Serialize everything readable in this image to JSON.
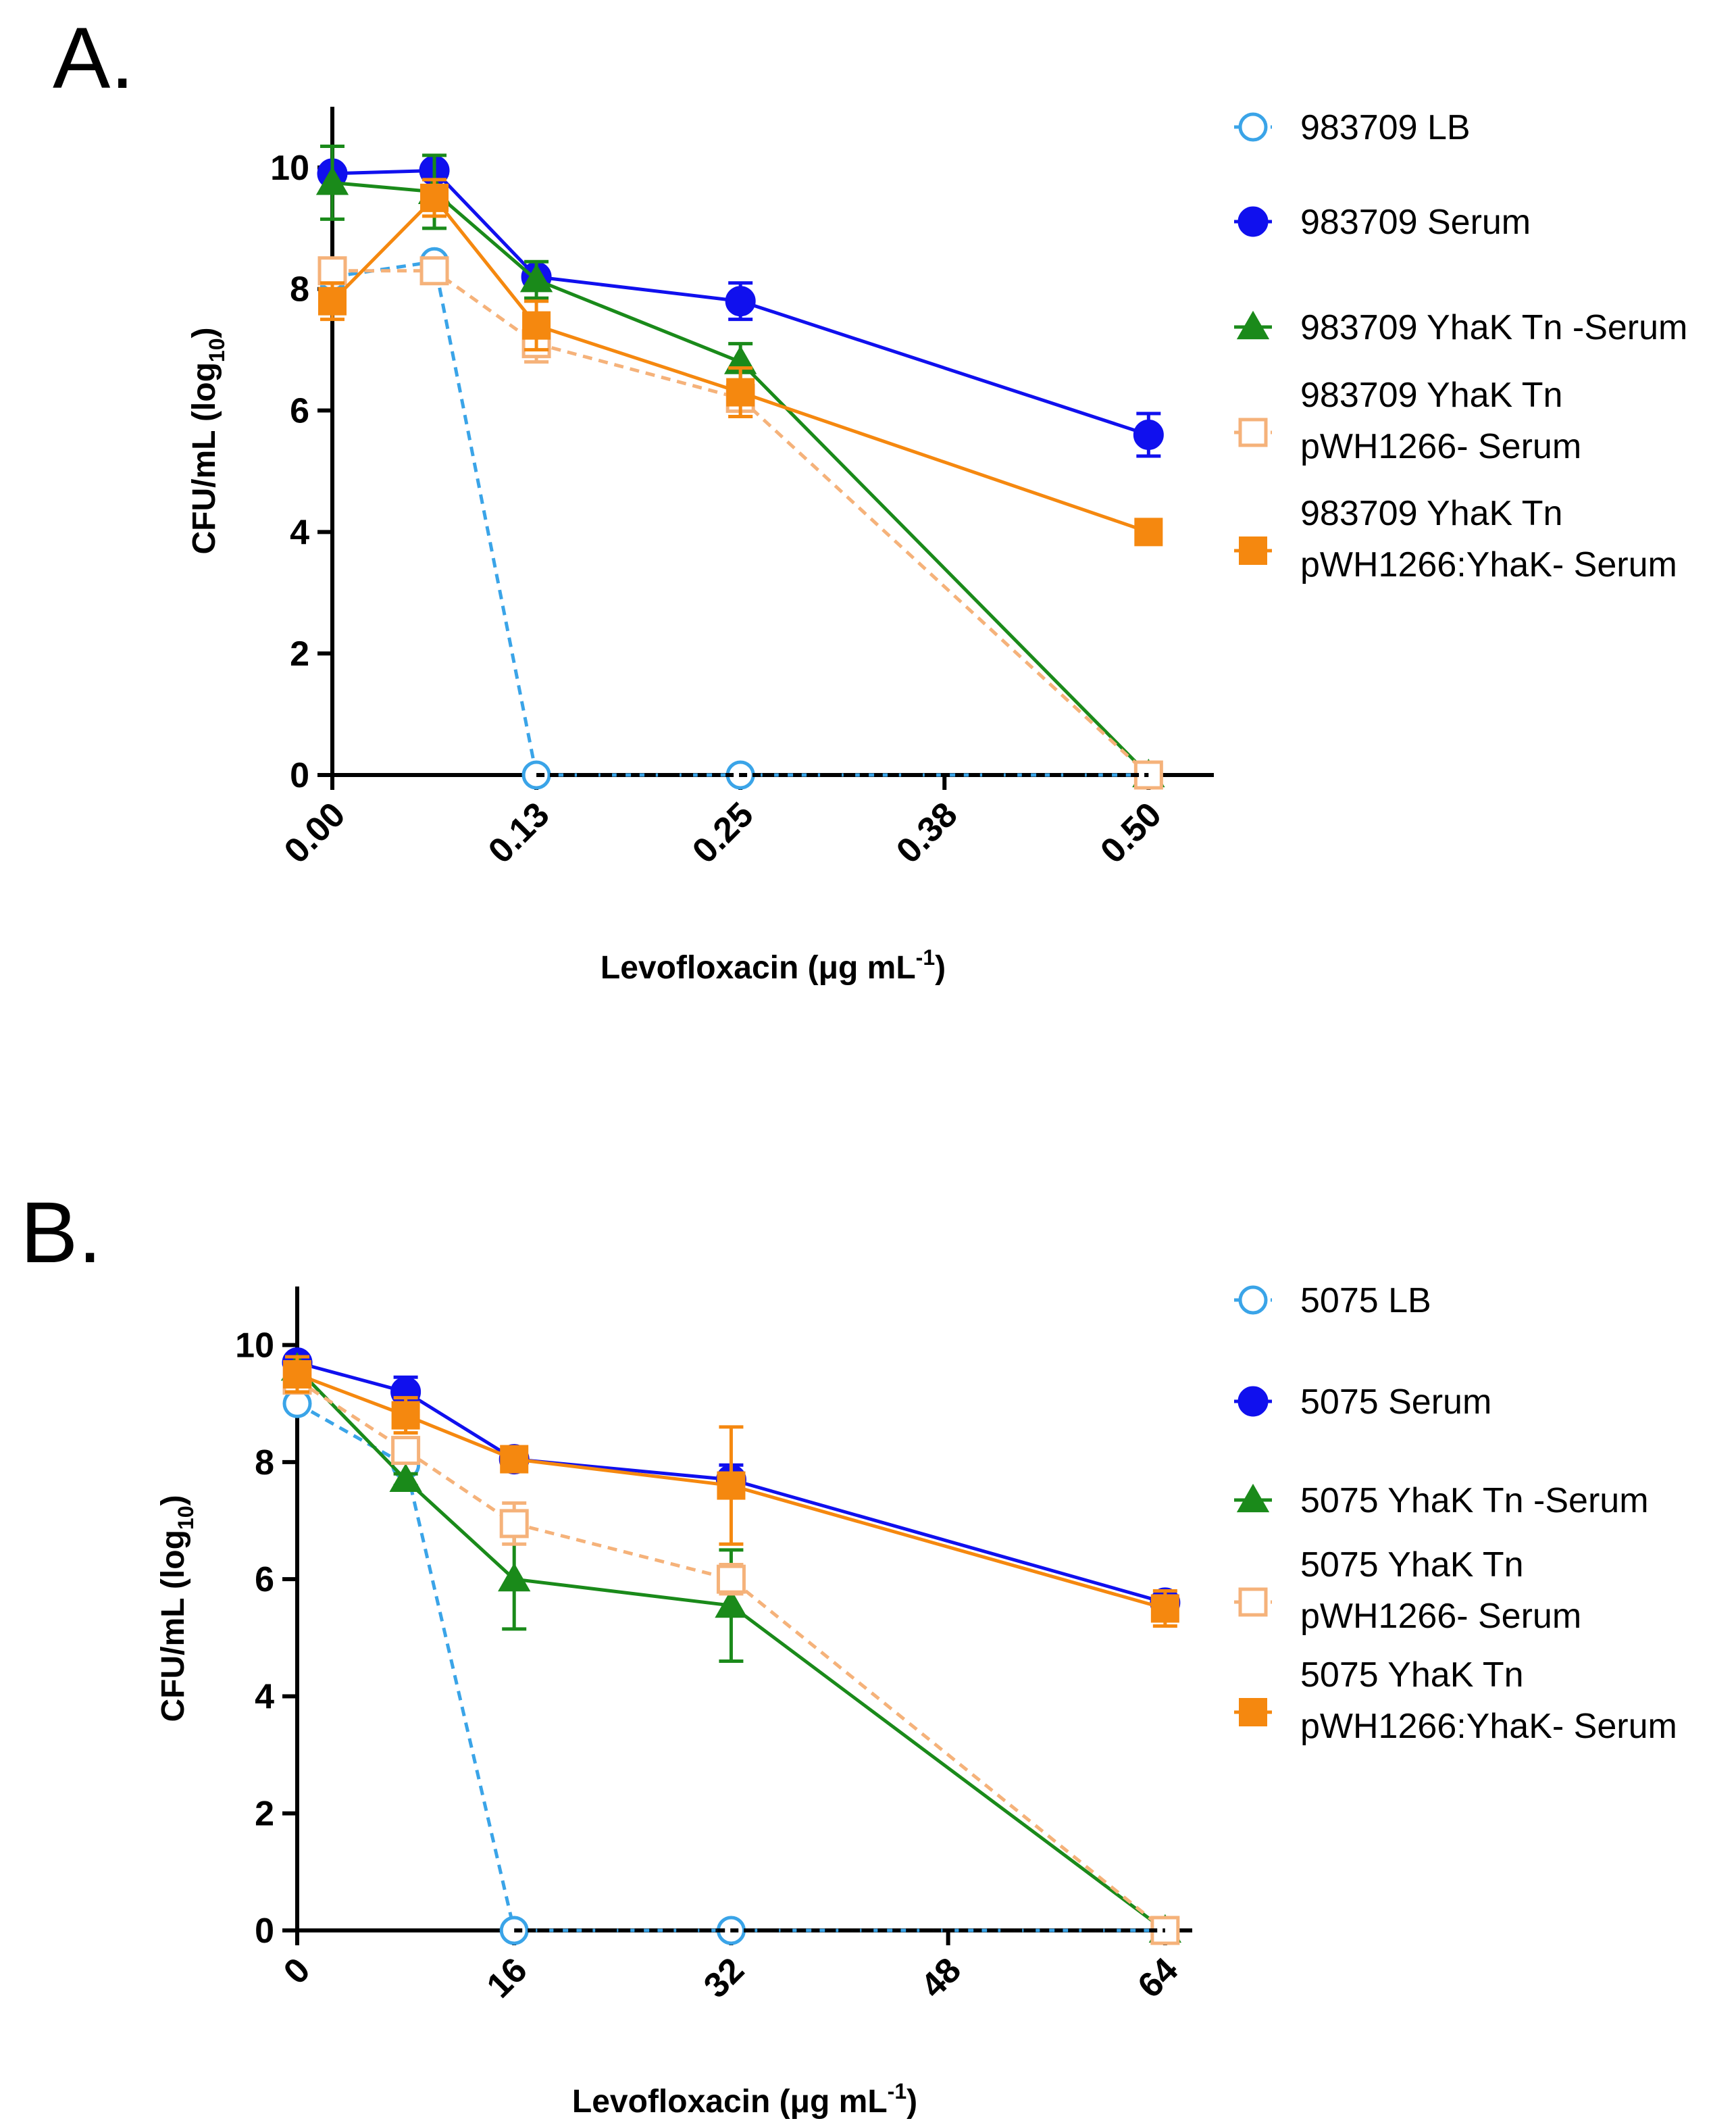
{
  "chart_data": [
    {
      "type": "line",
      "panel_label": "A.",
      "xlabel": "Levofloxacin",
      "xlabel_unit": "(μg mL",
      "xlabel_sup": "-1",
      "xlabel_close": ")",
      "ylabel": "CFU/mL (log",
      "ylabel_sub": "10",
      "ylabel_close": ")",
      "xlim": [
        0,
        0.54
      ],
      "ylim": [
        0,
        11
      ],
      "xticks": [
        0,
        0.125,
        0.25,
        0.375,
        0.5
      ],
      "xtick_labels": [
        "0.00",
        "0.13",
        "0.25",
        "0.38",
        "0.50"
      ],
      "yticks": [
        0,
        2,
        4,
        6,
        8,
        10
      ],
      "ytick_labels": [
        "0",
        "2",
        "4",
        "6",
        "8",
        "10"
      ],
      "x": [
        0,
        0.0625,
        0.125,
        0.25,
        0.5
      ],
      "legend_position": "right",
      "series": [
        {
          "name": "983709 LB",
          "legend_lines": [
            "983709 LB"
          ],
          "color": "#3aa4e8",
          "marker": "circle-open",
          "dashed": true,
          "values": [
            8.2,
            8.45,
            0,
            0,
            0
          ],
          "errors": [
            0.15,
            0.1,
            0,
            0,
            0
          ]
        },
        {
          "name": "983709 Serum",
          "legend_lines": [
            "983709 Serum"
          ],
          "color": "#1010ee",
          "marker": "circle",
          "dashed": false,
          "values": [
            9.9,
            9.95,
            8.2,
            7.8,
            5.6
          ],
          "errors": [
            0.05,
            0.05,
            0.1,
            0.3,
            0.35
          ]
        },
        {
          "name": "983709 YhaK Tn -Serum",
          "legend_lines": [
            "983709 YhaK Tn -Serum"
          ],
          "color": "#1a8a1a",
          "marker": "triangle",
          "dashed": false,
          "values": [
            9.75,
            9.6,
            8.15,
            6.8,
            0
          ],
          "errors": [
            0.6,
            0.6,
            0.3,
            0.3,
            0
          ]
        },
        {
          "name": "983709 YhaK Tn pWH1266- Serum",
          "legend_lines": [
            "983709 YhaK Tn",
            "pWH1266- Serum"
          ],
          "color": "#f5b27a",
          "marker": "square-open",
          "dashed": true,
          "values": [
            8.3,
            8.3,
            7.1,
            6.2,
            0
          ],
          "errors": [
            0.2,
            0.2,
            0.3,
            0.3,
            0
          ]
        },
        {
          "name": "983709 YhaK Tn pWH1266:YhaK- Serum",
          "legend_lines": [
            "983709 YhaK Tn",
            "pWH1266:YhaK- Serum"
          ],
          "color": "#f5880f",
          "marker": "square",
          "dashed": false,
          "values": [
            7.8,
            9.5,
            7.4,
            6.3,
            4.0
          ],
          "errors": [
            0.3,
            0.3,
            0.4,
            0.4,
            0.1
          ]
        }
      ]
    },
    {
      "type": "line",
      "panel_label": "B.",
      "xlabel": "Levofloxacin",
      "xlabel_unit": "(μg mL",
      "xlabel_sup": "-1",
      "xlabel_close": ")",
      "ylabel": "CFU/mL (log",
      "ylabel_sub": "10",
      "ylabel_close": ")",
      "xlim": [
        0,
        66
      ],
      "ylim": [
        0,
        11
      ],
      "xticks": [
        0,
        16,
        32,
        48,
        64
      ],
      "xtick_labels": [
        "0",
        "16",
        "32",
        "48",
        "64"
      ],
      "yticks": [
        0,
        2,
        4,
        6,
        8,
        10
      ],
      "ytick_labels": [
        "0",
        "2",
        "4",
        "6",
        "8",
        "10"
      ],
      "x": [
        0,
        8,
        16,
        32,
        64
      ],
      "legend_position": "right",
      "series": [
        {
          "name": "5075 LB",
          "legend_lines": [
            "5075 LB"
          ],
          "color": "#3aa4e8",
          "marker": "circle-open",
          "dashed": true,
          "values": [
            9.0,
            7.95,
            0,
            0,
            0
          ],
          "errors": [
            0.1,
            0.1,
            0,
            0,
            0
          ]
        },
        {
          "name": "5075 Serum",
          "legend_lines": [
            "5075 Serum"
          ],
          "color": "#1010ee",
          "marker": "circle",
          "dashed": false,
          "values": [
            9.7,
            9.2,
            8.05,
            7.7,
            5.6
          ],
          "errors": [
            0.1,
            0.25,
            0.1,
            0.25,
            0.1
          ]
        },
        {
          "name": "5075 YhaK Tn -Serum",
          "legend_lines": [
            "5075 YhaK Tn -Serum"
          ],
          "color": "#1a8a1a",
          "marker": "triangle",
          "dashed": false,
          "values": [
            9.6,
            7.7,
            6.0,
            5.55,
            0
          ],
          "errors": [
            0.1,
            0.1,
            0.85,
            0.95,
            0
          ]
        },
        {
          "name": "5075 YhaK Tn pWH1266- Serum",
          "legend_lines": [
            "5075 YhaK Tn",
            "pWH1266- Serum"
          ],
          "color": "#f5b27a",
          "marker": "square-open",
          "dashed": true,
          "values": [
            9.4,
            8.2,
            6.95,
            6.0,
            0
          ],
          "errors": [
            0.2,
            0.2,
            0.35,
            0.25,
            0
          ]
        },
        {
          "name": "5075 YhaK Tn pWH1266:YhaK- Serum",
          "legend_lines": [
            "5075 YhaK Tn",
            "pWH1266:YhaK- Serum"
          ],
          "color": "#f5880f",
          "marker": "square",
          "dashed": false,
          "values": [
            9.5,
            8.8,
            8.05,
            7.6,
            5.5
          ],
          "errors": [
            0.3,
            0.3,
            0.2,
            1.0,
            0.3
          ]
        }
      ]
    }
  ]
}
